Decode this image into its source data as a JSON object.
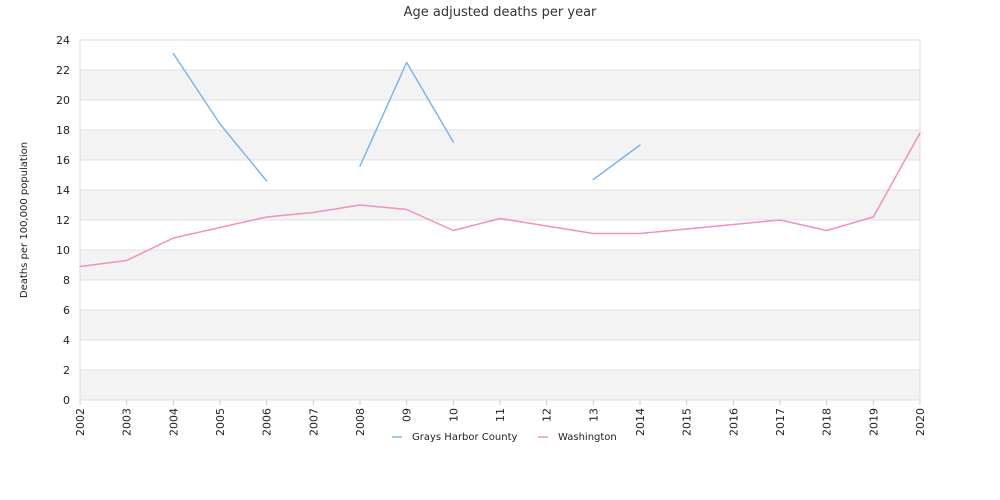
{
  "chart_data": {
    "type": "line",
    "title": "Age adjusted deaths per year",
    "xlabel": "",
    "ylabel": "Deaths per 100,000 population",
    "x": [
      "2002",
      "2003",
      "2004",
      "2005",
      "2006",
      "2007",
      "2008",
      "09",
      "10",
      "11",
      "12",
      "13",
      "2014",
      "2015",
      "2016",
      "2017",
      "2018",
      "2019",
      "2020"
    ],
    "ylim": [
      0,
      24
    ],
    "yticks": [
      0,
      2,
      4,
      6,
      8,
      10,
      12,
      14,
      16,
      18,
      20,
      22,
      24
    ],
    "grid": true,
    "legend_position": "bottom",
    "series": [
      {
        "name": "Grays Harbor County",
        "color": "#7cb5ec",
        "values": [
          null,
          null,
          23.1,
          18.4,
          14.6,
          null,
          15.6,
          22.5,
          17.2,
          null,
          null,
          14.7,
          17.0,
          null,
          null,
          null,
          null,
          null,
          null
        ]
      },
      {
        "name": "Washington",
        "color": "#f28fc4",
        "values": [
          8.9,
          9.3,
          10.8,
          11.5,
          12.2,
          12.5,
          13.0,
          12.7,
          11.3,
          12.1,
          11.6,
          11.1,
          11.1,
          11.4,
          11.7,
          12.0,
          11.3,
          12.2,
          17.8
        ]
      }
    ]
  }
}
